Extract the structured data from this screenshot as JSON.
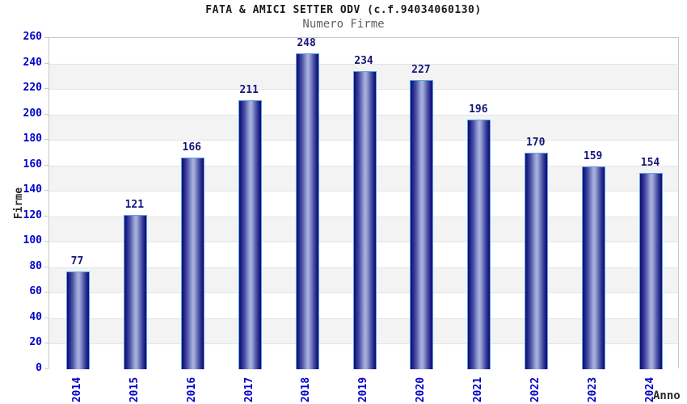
{
  "chart_data": {
    "type": "bar",
    "title": "FATA & AMICI SETTER ODV (c.f.94034060130)",
    "subtitle": "Numero Firme",
    "xlabel": "Anno",
    "ylabel": "Firme",
    "categories": [
      "2014",
      "2015",
      "2016",
      "2017",
      "2018",
      "2019",
      "2020",
      "2021",
      "2022",
      "2023",
      "2024"
    ],
    "values": [
      77,
      121,
      166,
      211,
      248,
      234,
      227,
      196,
      170,
      159,
      154
    ],
    "ylim": [
      0,
      260
    ],
    "ytick_step": 20,
    "grid": "horizontal-only",
    "legend": "none",
    "colors": {
      "tick_label_blue": "#0202cc",
      "value_label_navy": "#16167a",
      "bar_dark": "#0d0d66",
      "bar_highlight": "#abb4df",
      "bar_border": "#5ca6e8",
      "band_gray": "#f3f3f3",
      "band_white": "#ffffff",
      "grid_line": "#e4e4e4",
      "plot_border": "#c8c8c8",
      "title_color": "#1a1a1a",
      "subtitle_color": "#606060"
    }
  }
}
